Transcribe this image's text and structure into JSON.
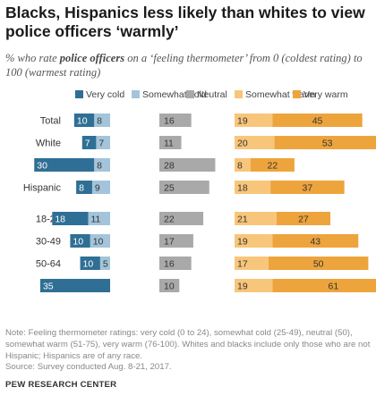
{
  "title": "Blacks, Hispanics less likely than whites to view police officers ‘warmly’",
  "subtitle": {
    "part1": "% who rate ",
    "bold": "police officers",
    "part2": " on a ‘feeling thermometer’ from 0 (coldest rating) to 100 (warmest rating)"
  },
  "note": "Note: Feeling thermometer ratings: very cold (0 to 24), somewhat cold (25-49), neutral (50), somewhat warm (51-75), very warm (76-100). Whites and blacks include only those who are not Hispanic; Hispanics are of any race.",
  "source": "Source: Survey conducted Aug. 8-21, 2017.",
  "credit": "PEW RESEARCH CENTER",
  "chart_data": {
    "type": "bar",
    "orientation": "horizontal",
    "stacked_diverging": true,
    "unit": "%",
    "categories": [
      "Total",
      "White",
      "Black",
      "Hispanic",
      "18-29",
      "30-49",
      "50-64",
      "65+"
    ],
    "series": [
      {
        "name": "Very cold",
        "color": "#2f6f95",
        "values": [
          10,
          7,
          30,
          8,
          18,
          10,
          10,
          35
        ]
      },
      {
        "name": "Somewhat cold",
        "color": "#a3c4da",
        "values": [
          8,
          7,
          8,
          9,
          11,
          10,
          5,
          null
        ]
      },
      {
        "name": "Neutral",
        "color": "#a9a9a9",
        "values": [
          16,
          11,
          28,
          25,
          22,
          17,
          16,
          10
        ]
      },
      {
        "name": "Somewhat warm",
        "color": "#f8c67a",
        "values": [
          19,
          20,
          8,
          18,
          21,
          19,
          17,
          19
        ]
      },
      {
        "name": "Very warm",
        "color": "#eea43c",
        "values": [
          45,
          53,
          22,
          37,
          27,
          43,
          50,
          61
        ]
      }
    ],
    "legend_position": "top",
    "grid": false
  }
}
